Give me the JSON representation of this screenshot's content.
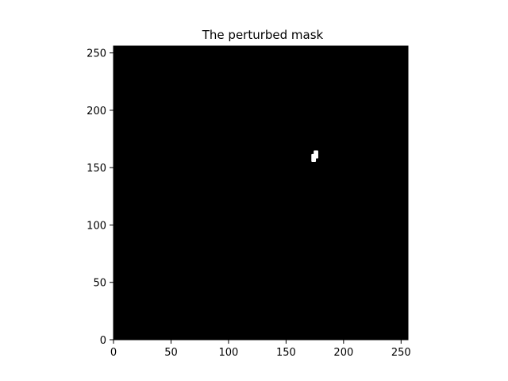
{
  "chart_data": {
    "type": "heatmap",
    "title": "The perturbed mask",
    "xlabel": "",
    "ylabel": "",
    "xlim": [
      0,
      256
    ],
    "ylim": [
      0,
      256
    ],
    "x_ticks": [
      0,
      50,
      100,
      150,
      200,
      250
    ],
    "y_ticks": [
      0,
      50,
      100,
      150,
      200,
      250
    ],
    "x_tick_labels": [
      "0",
      "50",
      "100",
      "150",
      "200",
      "250"
    ],
    "y_tick_labels": [
      "0",
      "50",
      "100",
      "150",
      "200",
      "250"
    ],
    "grid": false,
    "colormap": "gray",
    "background_value": 0,
    "regions": [
      {
        "value": 1,
        "x_range": [
          172,
          176
        ],
        "y_range": [
          155,
          162
        ]
      },
      {
        "value": 1,
        "x_range": [
          174,
          178
        ],
        "y_range": [
          158,
          165
        ]
      }
    ],
    "colors": {
      "background": "#000000",
      "foreground": "#ffffff",
      "axis": "#000000",
      "figure": "#ffffff"
    }
  }
}
